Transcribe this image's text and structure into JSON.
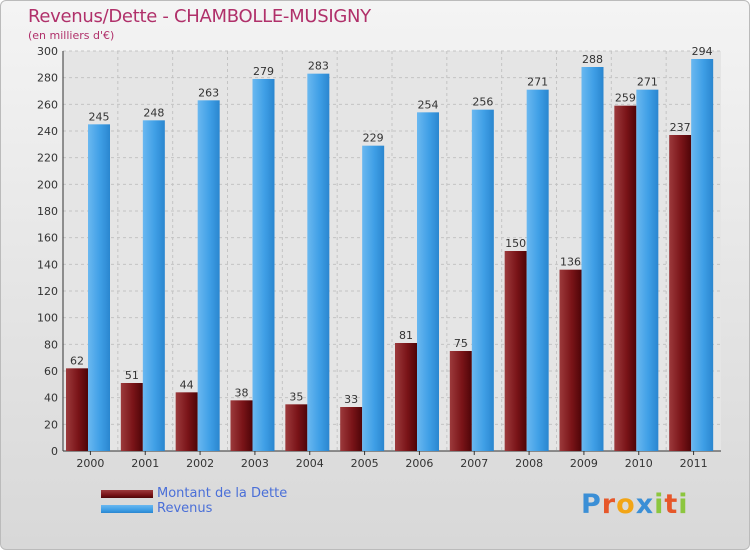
{
  "header": {
    "title": "Revenus/Dette - CHAMBOLLE-MUSIGNY",
    "subtitle": "(en milliers d'€)"
  },
  "colors": {
    "debt": "#7a1418",
    "revenue": "#3f9fe6",
    "title": "#b0306a",
    "legend_text": "#4a6fd8"
  },
  "chart_data": {
    "type": "bar",
    "title": "Revenus/Dette - CHAMBOLLE-MUSIGNY",
    "subtitle": "(en milliers d'€)",
    "categories": [
      "2000",
      "2001",
      "2002",
      "2003",
      "2004",
      "2005",
      "2006",
      "2007",
      "2008",
      "2009",
      "2010",
      "2011"
    ],
    "series": [
      {
        "name": "Montant de la Dette",
        "values": [
          62,
          51,
          44,
          38,
          35,
          33,
          81,
          75,
          150,
          136,
          259,
          237
        ]
      },
      {
        "name": "Revenus",
        "values": [
          245,
          248,
          263,
          279,
          283,
          229,
          254,
          256,
          271,
          288,
          271,
          294
        ]
      }
    ],
    "ylim": [
      0,
      300
    ],
    "yticks": [
      0,
      20,
      40,
      60,
      80,
      100,
      120,
      140,
      160,
      180,
      200,
      220,
      240,
      260,
      280,
      300
    ],
    "grid": true,
    "legend_position": "bottom-left"
  },
  "legend": {
    "items": [
      {
        "label": "Montant de la Dette"
      },
      {
        "label": "Revenus"
      }
    ]
  },
  "logo": {
    "letters": [
      "P",
      "r",
      "o",
      "x",
      "i",
      "t",
      "i"
    ],
    "letter_colors": [
      "#3b8fd6",
      "#e6572a",
      "#f2a516",
      "#3b8fd6",
      "#8cc63e",
      "#e6572a",
      "#8cc63e"
    ]
  }
}
